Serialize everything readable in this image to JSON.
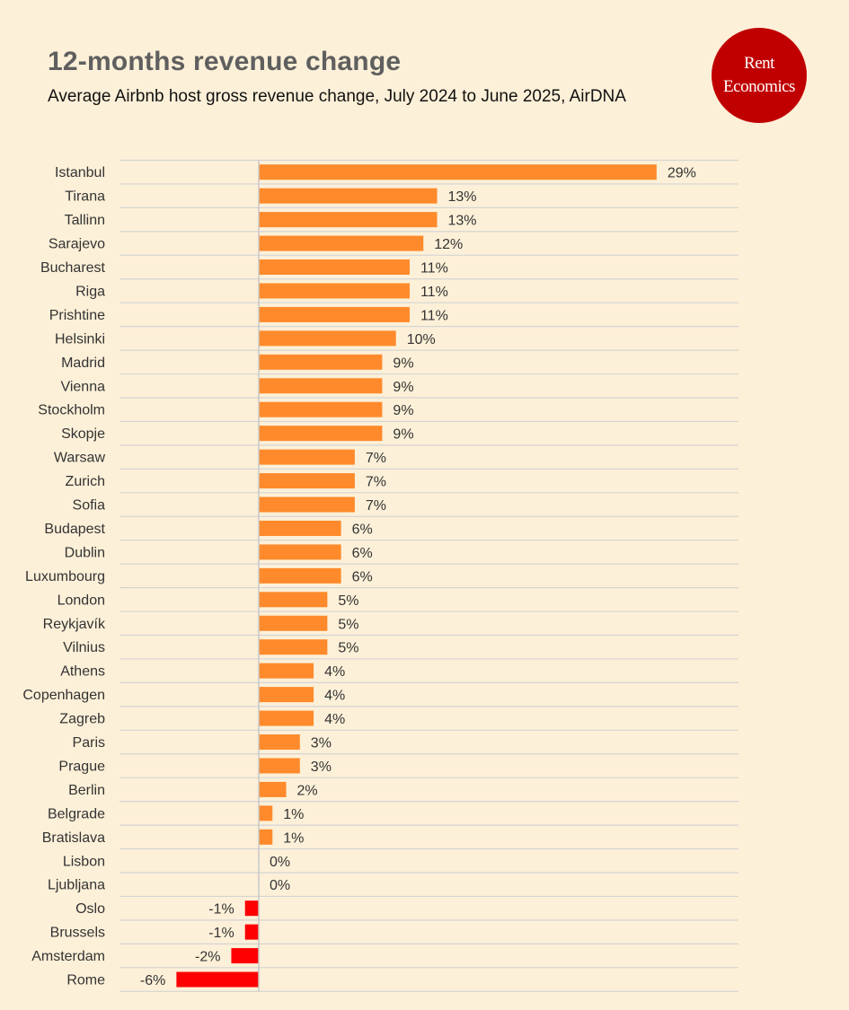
{
  "header": {
    "title": "12-months revenue change",
    "subtitle": "Average Airbnb host gross revenue change, July 2024 to June 2025, AirDNA"
  },
  "logo": {
    "line1": "Rent",
    "line2": "Economics",
    "color": "#c00000"
  },
  "colors": {
    "positive": "#ff8a2b",
    "negative": "#ff0000",
    "gridline": "#d4d4d4",
    "axis": "#c8c8c8"
  },
  "chart_data": {
    "type": "bar",
    "orientation": "horizontal",
    "title": "12-months revenue change",
    "subtitle": "Average Airbnb host gross revenue change, July 2024 to June 2025, AirDNA",
    "xlabel": "",
    "ylabel": "",
    "unit": "%",
    "xlim": [
      -10,
      35
    ],
    "categories": [
      "Istanbul",
      "Tirana",
      "Tallinn",
      "Sarajevo",
      "Bucharest",
      "Riga",
      "Prishtine",
      "Helsinki",
      "Madrid",
      "Vienna",
      "Stockholm",
      "Skopje",
      "Warsaw",
      "Zurich",
      "Sofia",
      "Budapest",
      "Dublin",
      "Luxumbourg",
      "London",
      "Reykjavík",
      "Vilnius",
      "Athens",
      "Copenhagen",
      "Zagreb",
      "Paris",
      "Prague",
      "Berlin",
      "Belgrade",
      "Bratislava",
      "Lisbon",
      "Ljubljana",
      "Oslo",
      "Brussels",
      "Amsterdam",
      "Rome"
    ],
    "values": [
      29,
      13,
      13,
      12,
      11,
      11,
      11,
      10,
      9,
      9,
      9,
      9,
      7,
      7,
      7,
      6,
      6,
      6,
      5,
      5,
      5,
      4,
      4,
      4,
      3,
      3,
      2,
      1,
      1,
      0,
      0,
      -1,
      -1,
      -2,
      -6
    ],
    "value_labels": [
      "29%",
      "13%",
      "13%",
      "12%",
      "11%",
      "11%",
      "11%",
      "10%",
      "9%",
      "9%",
      "9%",
      "9%",
      "7%",
      "7%",
      "7%",
      "6%",
      "6%",
      "6%",
      "5%",
      "5%",
      "5%",
      "4%",
      "4%",
      "4%",
      "3%",
      "3%",
      "2%",
      "1%",
      "1%",
      "0%",
      "0%",
      "-1%",
      "-1%",
      "-2%",
      "-6%"
    ]
  }
}
